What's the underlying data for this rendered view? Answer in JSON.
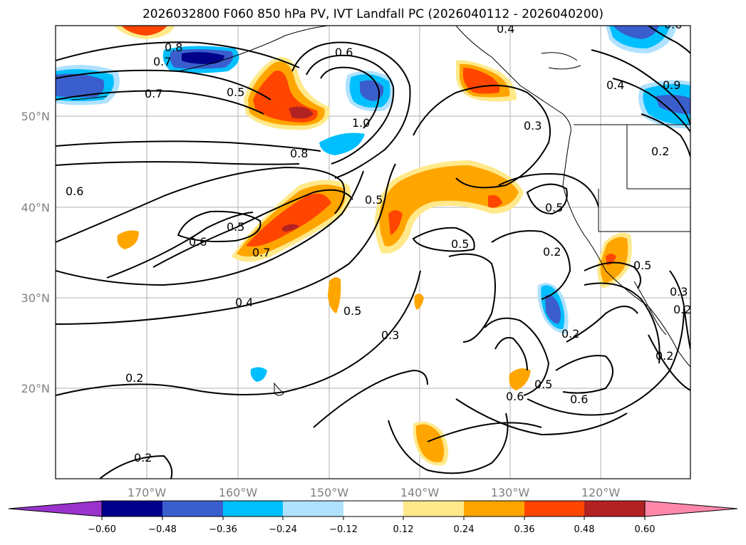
{
  "title": "2026032800 F060 850 hPa PV, IVT Landfall PC (2026040112 - 2026040200)",
  "map": {
    "lon_labels": [
      "170°W",
      "160°W",
      "150°W",
      "140°W",
      "130°W",
      "120°W"
    ],
    "lat_labels": [
      "50°N",
      "40°N",
      "30°N",
      "20°N"
    ],
    "contour_labels": [
      "0.8",
      "0.7",
      "0.7",
      "0.6",
      "0.5",
      "1.0",
      "0.8",
      "0.4",
      "0.4",
      "0.9",
      "0.6",
      "0.3",
      "0.2",
      "0.6",
      "0.5",
      "0.6",
      "0.7",
      "0.5",
      "0.5",
      "0.5",
      "0.5",
      "0.2",
      "0.4",
      "0.3",
      "0.5",
      "0.2",
      "0.3",
      "0.2",
      "0.2",
      "0.2",
      "0.6",
      "0.5",
      "0.6",
      "0.2"
    ]
  },
  "colorbar": {
    "tick_labels": [
      "−0.60",
      "−0.48",
      "−0.36",
      "−0.24",
      "−0.12",
      "0.12",
      "0.24",
      "0.36",
      "0.48",
      "0.60"
    ],
    "colors": [
      "#9933cc",
      "#00008b",
      "#3a5fcd",
      "#00bfff",
      "#b0e2ff",
      "#ffffff",
      "#ffe98a",
      "#ffa500",
      "#ff4500",
      "#b22222",
      "#ff88aa"
    ]
  }
}
